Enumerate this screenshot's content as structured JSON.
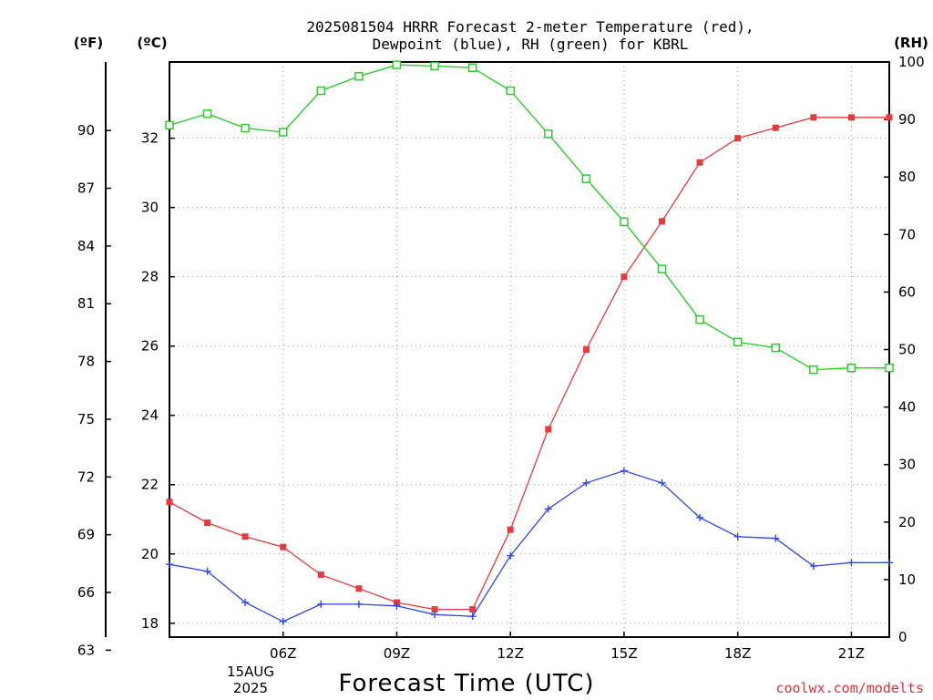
{
  "title_line1": "2025081504 HRRR Forecast 2-meter Temperature (red),",
  "title_line2": "Dewpoint (blue), RH (green) for KBRL",
  "unit_f": "(ºF)",
  "unit_c": "(ºC)",
  "unit_rh": "(RH)",
  "xlabel": "Forecast Time (UTC)",
  "credit": "coolwx.com/modelts",
  "date_line1": "15AUG",
  "date_line2": "2025",
  "colors": {
    "temperature": "#e8393c",
    "dewpoint": "#2e47e6",
    "rh": "#1fcc1f",
    "credit": "#e0303a"
  },
  "chart_data": {
    "type": "line",
    "x_unit": "hour UTC",
    "x": [
      3,
      4,
      5,
      6,
      7,
      8,
      9,
      10,
      11,
      12,
      13,
      14,
      15,
      16,
      17,
      18,
      19,
      20,
      21,
      22
    ],
    "xlim": [
      3,
      22
    ],
    "x_ticks": [
      6,
      9,
      12,
      15,
      18,
      21
    ],
    "x_tick_labels": [
      "06Z",
      "09Z",
      "12Z",
      "15Z",
      "18Z",
      "21Z"
    ],
    "y_left_celsius": {
      "range": [
        17.6,
        34.2
      ],
      "ticks": [
        18,
        20,
        22,
        24,
        26,
        28,
        30,
        32
      ],
      "tick_labels": [
        "18",
        "20",
        "22",
        "24",
        "26",
        "28",
        "30",
        "32"
      ]
    },
    "y_left_fahrenheit": {
      "ticks": [
        63,
        66,
        69,
        72,
        75,
        78,
        81,
        84,
        87,
        90
      ],
      "tick_labels": [
        "63",
        "66",
        "69",
        "72",
        "75",
        "78",
        "81",
        "84",
        "87",
        "90"
      ]
    },
    "y_right_rh": {
      "range": [
        0,
        100
      ],
      "ticks": [
        0,
        10,
        20,
        30,
        40,
        50,
        60,
        70,
        80,
        90,
        100
      ],
      "tick_labels": [
        "0",
        "10",
        "20",
        "30",
        "40",
        "50",
        "60",
        "70",
        "80",
        "90",
        "100"
      ]
    },
    "grid": true,
    "series": [
      {
        "key": "temperature",
        "axis": "celsius",
        "marker": "filled-square",
        "values": [
          21.5,
          20.9,
          20.5,
          20.2,
          19.4,
          19.0,
          18.6,
          18.4,
          18.4,
          20.7,
          23.6,
          25.9,
          28.0,
          29.6,
          31.3,
          32.0,
          32.3,
          32.6,
          32.6,
          32.6
        ]
      },
      {
        "key": "dewpoint",
        "axis": "celsius",
        "marker": "plus",
        "values": [
          19.7,
          19.5,
          18.6,
          18.05,
          18.55,
          18.55,
          18.5,
          18.25,
          18.2,
          19.95,
          21.3,
          22.05,
          22.4,
          22.05,
          21.05,
          20.5,
          20.45,
          19.65,
          19.75,
          19.75
        ]
      },
      {
        "key": "rh",
        "axis": "rh",
        "marker": "open-square",
        "values": [
          89,
          91,
          88.5,
          87.8,
          95,
          97.5,
          99.5,
          99.3,
          99,
          95,
          87.5,
          79.7,
          72.2,
          64,
          55.2,
          51.3,
          50.3,
          46.5,
          46.8,
          46.8
        ]
      }
    ]
  }
}
